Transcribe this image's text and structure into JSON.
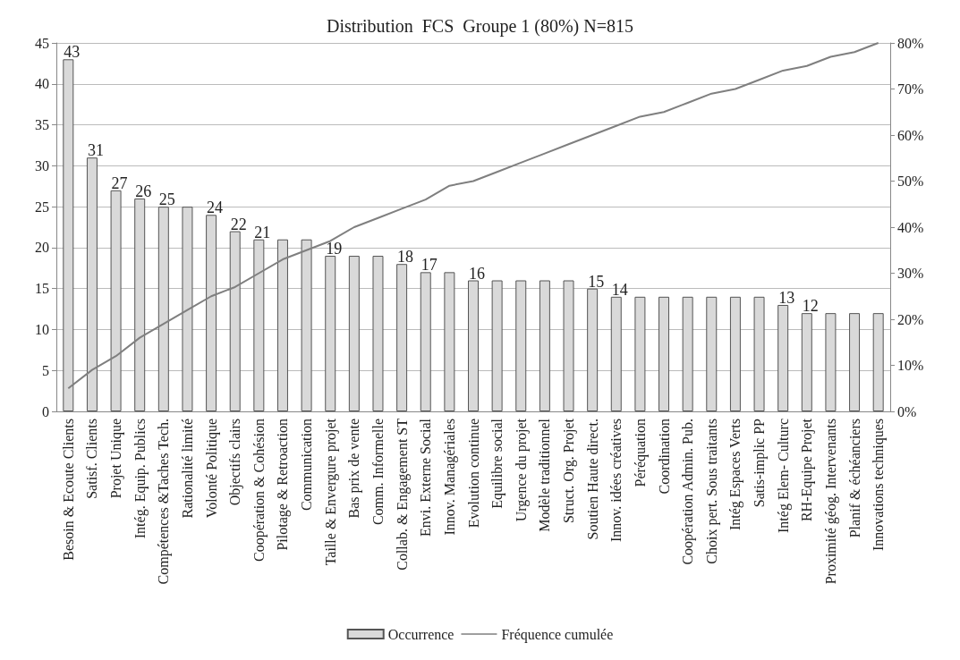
{
  "chart_data": {
    "type": "bar",
    "title": "Distribution  FCS  Groupe 1 (80%) N=815",
    "categories": [
      "Besoin & Ecoute Clients",
      "Satisf. Clients",
      "Projet Unique",
      "Intég. Equip. Publics",
      "Compétences &Taches Tech.",
      "Rationalité limité",
      "Volonté Politique",
      "Objectifs clairs",
      "Coopération & Cohésion",
      "Pilotage & Retroaction",
      "Communication",
      "Taille & Envergure projet",
      "Bas prix de vente",
      "Comm. Informelle",
      "Collab. & Engagement ST",
      "Envi. Externe Social",
      "Innov. Managériales",
      "Evolution continue",
      "Equilibre social",
      "Urgence du projet",
      "Modèle traditionnel",
      "Struct. Org. Projet",
      "Soutien Haute direct.",
      "Innov. idées créatives",
      "Péréquation",
      "Coordination",
      "Coopération Admin. Pub.",
      "Choix pert. Sous traitants",
      "Intég Espaces Verts",
      "Satis-implic PP",
      "Intég Elem- Culturc",
      "RH-Equipe Projet",
      "Proximité géog. Intervenants",
      "Planif & échéanciers",
      "Innovations techniques"
    ],
    "series": [
      {
        "name": "Occurrence",
        "color": "#d9d9d9",
        "values": [
          43,
          31,
          27,
          26,
          25,
          25,
          24,
          22,
          21,
          21,
          21,
          19,
          19,
          19,
          18,
          17,
          17,
          16,
          16,
          16,
          16,
          16,
          15,
          14,
          14,
          14,
          14,
          14,
          14,
          14,
          13,
          12,
          12,
          12,
          12
        ],
        "value_labels": [
          "43",
          "31",
          "27",
          "26",
          "25",
          null,
          "24",
          "22",
          "21",
          null,
          null,
          "19",
          null,
          null,
          "18",
          "17",
          null,
          "16",
          null,
          null,
          null,
          null,
          "15",
          "14",
          null,
          null,
          null,
          null,
          null,
          null,
          "13",
          "12",
          null,
          null,
          null
        ]
      },
      {
        "name": "Fréquence cumulée",
        "type": "line",
        "axis": "y2",
        "color": "#7f7f7f",
        "values": [
          5,
          9,
          12,
          16,
          19,
          22,
          25,
          27,
          30,
          33,
          35,
          37,
          40,
          42,
          44,
          46,
          49,
          50,
          52,
          54,
          56,
          58,
          60,
          62,
          64,
          65,
          67,
          69,
          70,
          72,
          74,
          75,
          77,
          78,
          80
        ]
      }
    ],
    "ylim": [
      0,
      45
    ],
    "yticks": [
      0,
      5,
      10,
      15,
      20,
      25,
      30,
      35,
      40,
      45
    ],
    "y2lim": [
      0,
      80
    ],
    "y2ticks": [
      {
        "value": 0,
        "label": "0%"
      },
      {
        "value": 10,
        "label": "10%"
      },
      {
        "value": 20,
        "label": "20%"
      },
      {
        "value": 30,
        "label": "30%"
      },
      {
        "value": 40,
        "label": "40%"
      },
      {
        "value": 50,
        "label": "50%"
      },
      {
        "value": 60,
        "label": "60%"
      },
      {
        "value": 70,
        "label": "70%"
      },
      {
        "value": 80,
        "label": "80%"
      }
    ],
    "grid": "y",
    "legend": "bottom",
    "marker": "none",
    "line_style": "solid"
  }
}
